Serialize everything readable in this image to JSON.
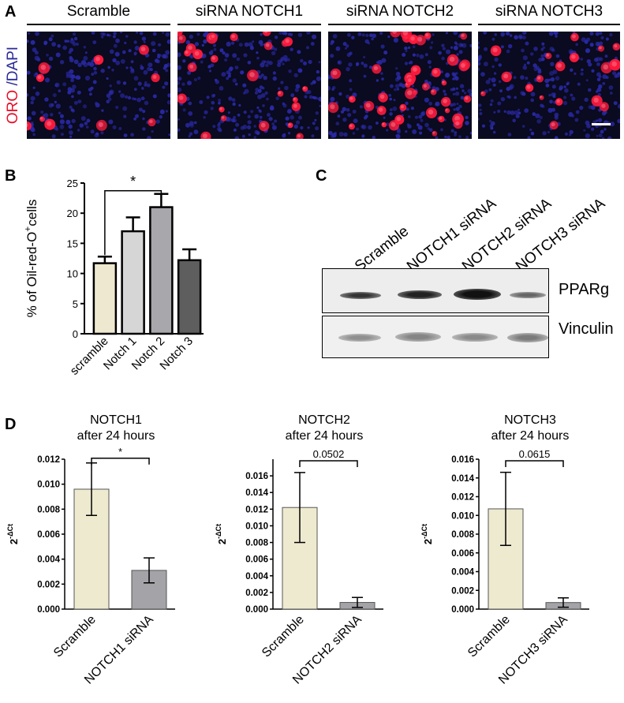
{
  "panel_a": {
    "letter": "A",
    "stain_left": "ORO",
    "stain_sep": " /",
    "stain_right": "DAPI",
    "columns": [
      "Scramble",
      "siRNA NOTCH1",
      "siRNA NOTCH2",
      "siRNA NOTCH3"
    ],
    "colors": {
      "oro": "#ff1a3c",
      "dapi": "#2a2aa8"
    }
  },
  "panel_b": {
    "letter": "B"
  },
  "panel_c": {
    "letter": "C",
    "lanes": [
      "Scramble",
      "NOTCH1 siRNA",
      "NOTCH2 siRNA",
      "NOTCH3 siRNA"
    ],
    "blots": [
      "PPARg",
      "Vinculin"
    ]
  },
  "panel_d": {
    "letter": "D"
  },
  "chart_data": [
    {
      "id": "B",
      "type": "bar",
      "ylabel_main": "% of Oil-red-O",
      "ylabel_sup": "+",
      "ylabel_end": "cells",
      "categories": [
        "scramble",
        "Notch 1",
        "Notch 2",
        "Notch 3"
      ],
      "values": [
        11.7,
        17.0,
        21.0,
        12.2
      ],
      "errors": [
        1.1,
        2.3,
        2.2,
        1.8
      ],
      "colors": [
        "#efe8d0",
        "#d6d6d6",
        "#a8a8ac",
        "#5e5e5e"
      ],
      "ylim": [
        0,
        25
      ],
      "yticks": [
        "0",
        "5",
        "10",
        "15",
        "20",
        "25"
      ],
      "significance": {
        "from": 0,
        "to": 2,
        "label": "*"
      }
    },
    {
      "id": "D1",
      "type": "bar",
      "title_line1": "NOTCH1",
      "title_line2": "after 24 hours",
      "ylabel_base": "2",
      "ylabel_exp": "-ΔCt",
      "categories": [
        "Scramble",
        "NOTCH1 siRNA"
      ],
      "values": [
        0.0096,
        0.0031
      ],
      "errors": [
        0.0021,
        0.001
      ],
      "colors": [
        "#eeead0",
        "#a3a3a8"
      ],
      "ylim": [
        0,
        0.012
      ],
      "yticks": [
        "0.000",
        "0.002",
        "0.004",
        "0.006",
        "0.008",
        "0.010",
        "0.012"
      ],
      "significance": {
        "label": "*"
      }
    },
    {
      "id": "D2",
      "type": "bar",
      "title_line1": "NOTCH2",
      "title_line2": "after 24 hours",
      "ylabel_base": "2",
      "ylabel_exp": "-ΔCt",
      "categories": [
        "Scramble",
        "NOTCH2 siRNA"
      ],
      "values": [
        0.0122,
        0.0008
      ],
      "errors": [
        0.0042,
        0.0006
      ],
      "colors": [
        "#eeead0",
        "#a3a3a8"
      ],
      "ylim": [
        0,
        0.018
      ],
      "yticks": [
        "0.000",
        "0.002",
        "0.004",
        "0.006",
        "0.008",
        "0.010",
        "0.012",
        "0.014",
        "0.016"
      ],
      "significance": {
        "label": "0.0502"
      }
    },
    {
      "id": "D3",
      "type": "bar",
      "title_line1": "NOTCH3",
      "title_line2": "after 24 hours",
      "ylabel_base": "2",
      "ylabel_exp": "-ΔCt",
      "categories": [
        "Scramble",
        "NOTCH3 siRNA"
      ],
      "values": [
        0.0107,
        0.0007
      ],
      "errors": [
        0.0039,
        0.0005
      ],
      "colors": [
        "#eeead0",
        "#a3a3a8"
      ],
      "ylim": [
        0,
        0.016
      ],
      "yticks": [
        "0.000",
        "0.002",
        "0.004",
        "0.006",
        "0.008",
        "0.010",
        "0.012",
        "0.014",
        "0.016"
      ],
      "significance": {
        "label": "0.0615"
      }
    }
  ]
}
